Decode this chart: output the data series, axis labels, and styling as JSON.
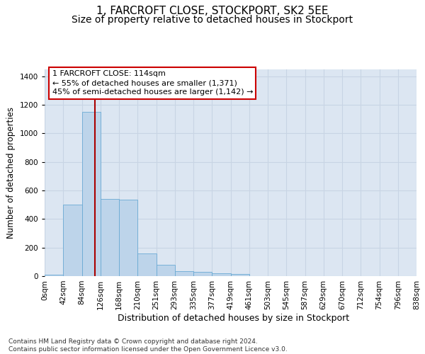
{
  "title": "1, FARCROFT CLOSE, STOCKPORT, SK2 5EE",
  "subtitle": "Size of property relative to detached houses in Stockport",
  "xlabel": "Distribution of detached houses by size in Stockport",
  "ylabel": "Number of detached properties",
  "bar_values": [
    10,
    500,
    1150,
    540,
    535,
    160,
    80,
    35,
    28,
    20,
    15,
    0,
    0,
    0,
    0,
    0,
    0,
    0,
    0,
    0
  ],
  "bar_labels": [
    "0sqm",
    "42sqm",
    "84sqm",
    "126sqm",
    "168sqm",
    "210sqm",
    "251sqm",
    "293sqm",
    "335sqm",
    "377sqm",
    "419sqm",
    "461sqm",
    "503sqm",
    "545sqm",
    "587sqm",
    "629sqm",
    "670sqm",
    "712sqm",
    "754sqm",
    "796sqm",
    "838sqm"
  ],
  "bar_color": "#bdd4ea",
  "bar_edge_color": "#6aaad4",
  "grid_color": "#c8d4e4",
  "background_color": "#dce6f2",
  "vline_color": "#aa0000",
  "annotation_text": "1 FARCROFT CLOSE: 114sqm\n← 55% of detached houses are smaller (1,371)\n45% of semi-detached houses are larger (1,142) →",
  "annotation_box_color": "#cc0000",
  "ylim": [
    0,
    1450
  ],
  "yticks": [
    0,
    200,
    400,
    600,
    800,
    1000,
    1200,
    1400
  ],
  "footer_text": "Contains HM Land Registry data © Crown copyright and database right 2024.\nContains public sector information licensed under the Open Government Licence v3.0.",
  "title_fontsize": 11,
  "subtitle_fontsize": 10,
  "xlabel_fontsize": 9,
  "ylabel_fontsize": 8.5,
  "tick_fontsize": 7.5,
  "annotation_fontsize": 8,
  "footer_fontsize": 6.5
}
